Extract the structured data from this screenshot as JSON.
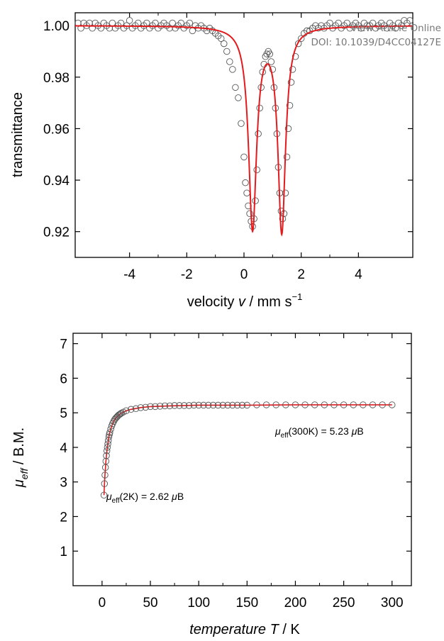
{
  "watermark": {
    "line1": "View Article Online",
    "line2": "DOI: 10.1039/D4CC04127E"
  },
  "chart_data": [
    {
      "type": "scatter",
      "xlabel_text": "velocity ",
      "xlabel_var": "v",
      "xlabel_unit": " / mm s",
      "xlabel_sup": "−1",
      "ylabel": "transmittance",
      "xlim": [
        -5.9,
        5.9
      ],
      "ylim": [
        0.91,
        1.005
      ],
      "xticks": [
        "-4",
        "-2",
        "0",
        "2",
        "4"
      ],
      "xtick_values": [
        -4,
        -2,
        0,
        2,
        4
      ],
      "yticks": [
        "0.92",
        "0.94",
        "0.96",
        "0.98",
        "1.00"
      ],
      "ytick_values": [
        0.92,
        0.94,
        0.96,
        0.98,
        1.0
      ],
      "fit": {
        "baseline": 1.0,
        "lines": [
          {
            "center": 0.3,
            "depth": 0.078,
            "hwhm": 0.17
          },
          {
            "center": 1.32,
            "depth": 0.079,
            "hwhm": 0.16
          }
        ],
        "color": "#e41a1c"
      },
      "series": [
        {
          "marker": "open-circle",
          "x": [
            -5.8,
            -5.7,
            -5.6,
            -5.5,
            -5.4,
            -5.3,
            -5.2,
            -5.1,
            -5.0,
            -4.9,
            -4.8,
            -4.7,
            -4.6,
            -4.5,
            -4.4,
            -4.3,
            -4.2,
            -4.1,
            -4.0,
            -3.9,
            -3.8,
            -3.7,
            -3.6,
            -3.5,
            -3.4,
            -3.3,
            -3.2,
            -3.1,
            -3.0,
            -2.9,
            -2.8,
            -2.7,
            -2.6,
            -2.5,
            -2.4,
            -2.3,
            -2.2,
            -2.1,
            -2.0,
            -1.9,
            -1.8,
            -1.7,
            -1.6,
            -1.5,
            -1.4,
            -1.3,
            -1.2,
            -1.1,
            -1.0,
            -0.9,
            -0.8,
            -0.7,
            -0.6,
            -0.5,
            -0.4,
            -0.3,
            -0.2,
            -0.1,
            0.0,
            0.05,
            0.1,
            0.15,
            0.2,
            0.25,
            0.3,
            0.35,
            0.4,
            0.45,
            0.5,
            0.55,
            0.6,
            0.65,
            0.7,
            0.75,
            0.8,
            0.85,
            0.9,
            0.95,
            1.0,
            1.05,
            1.1,
            1.15,
            1.2,
            1.25,
            1.3,
            1.35,
            1.4,
            1.45,
            1.5,
            1.55,
            1.6,
            1.65,
            1.7,
            1.8,
            1.9,
            2.0,
            2.1,
            2.2,
            2.3,
            2.4,
            2.5,
            2.6,
            2.7,
            2.8,
            2.9,
            3.0,
            3.1,
            3.2,
            3.3,
            3.4,
            3.5,
            3.6,
            3.7,
            3.8,
            3.9,
            4.0,
            4.1,
            4.2,
            4.3,
            4.4,
            4.5,
            4.6,
            4.7,
            4.8,
            4.9,
            5.0,
            5.1,
            5.2,
            5.3,
            5.4,
            5.5,
            5.6,
            5.7,
            5.8
          ],
          "y": [
            1.001,
            0.999,
            1.001,
            1.0,
            1.001,
            0.999,
            1.001,
            1.0,
            0.999,
            1.001,
            1.0,
            0.999,
            1.001,
            0.999,
            1.0,
            1.001,
            0.999,
            1.0,
            1.002,
            0.999,
            1.0,
            1.001,
            0.999,
            1.0,
            1.001,
            0.999,
            1.0,
            1.001,
            0.999,
            1.0,
            1.001,
            1.0,
            0.999,
            1.001,
            0.999,
            1.0,
            1.001,
            0.999,
            1.0,
            1.001,
            0.998,
            1.0,
            0.999,
            1.0,
            0.999,
            0.998,
            0.999,
            0.998,
            0.997,
            0.996,
            0.995,
            0.993,
            0.99,
            0.986,
            0.983,
            0.976,
            0.972,
            0.962,
            0.949,
            0.939,
            0.935,
            0.93,
            0.927,
            0.924,
            0.922,
            0.925,
            0.932,
            0.944,
            0.958,
            0.968,
            0.976,
            0.982,
            0.985,
            0.988,
            0.989,
            0.99,
            0.989,
            0.986,
            0.983,
            0.976,
            0.968,
            0.958,
            0.945,
            0.935,
            0.928,
            0.925,
            0.927,
            0.935,
            0.949,
            0.96,
            0.969,
            0.978,
            0.983,
            0.988,
            0.993,
            0.995,
            0.997,
            0.998,
            0.998,
            0.999,
            1.0,
            0.999,
            1.0,
            0.999,
            1.0,
            1.001,
            0.999,
            1.0,
            1.001,
            0.999,
            1.0,
            1.001,
            0.999,
            1.0,
            1.001,
            1.0,
            0.999,
            1.001,
            1.0,
            1.0,
            1.001,
            0.999,
            1.0,
            1.001,
            1.0,
            0.999,
            1.001,
            1.0,
            0.999,
            1.001,
            1.0,
            1.002,
            1.001,
            1.002
          ]
        }
      ]
    },
    {
      "type": "scatter",
      "xlabel_var": "temperature T",
      "xlabel_unit": " / K",
      "ylabel_var": "μ",
      "ylabel_sub": "eff",
      "ylabel_unit": " / B.M.",
      "xlim": [
        -30,
        320
      ],
      "ylim": [
        0,
        7.3
      ],
      "xticks": [
        "0",
        "50",
        "100",
        "150",
        "200",
        "250",
        "300"
      ],
      "xtick_values": [
        0,
        50,
        100,
        150,
        200,
        250,
        300
      ],
      "yticks": [
        "1",
        "2",
        "3",
        "4",
        "5",
        "6",
        "7"
      ],
      "ytick_values": [
        1,
        2,
        3,
        4,
        5,
        6,
        7
      ],
      "annotations": [
        {
          "mu": "μ",
          "sub": "eff",
          "rest": "(300K) = 5.23 ",
          "unit_mu": "μ",
          "unit": "B",
          "anchor_x": 180,
          "anchor_y": 4.55
        },
        {
          "mu": "μ",
          "sub": "eff",
          "rest": "(2K) = 2.62 ",
          "unit_mu": "μ",
          "unit": "B",
          "anchor_x": 6,
          "anchor_y": 2.55
        }
      ],
      "fit": {
        "color": "#e41a1c",
        "x": [
          2,
          2.5,
          3,
          4,
          5,
          6,
          7,
          8,
          10,
          12,
          14,
          16,
          18,
          20,
          25,
          30,
          40,
          50,
          70,
          100,
          150,
          200,
          250,
          300
        ],
        "y": [
          2.62,
          2.95,
          3.2,
          3.6,
          3.9,
          4.1,
          4.3,
          4.43,
          4.62,
          4.75,
          4.84,
          4.9,
          4.95,
          4.99,
          5.06,
          5.1,
          5.15,
          5.18,
          5.2,
          5.22,
          5.22,
          5.23,
          5.23,
          5.23
        ]
      },
      "series": [
        {
          "marker": "open-circle",
          "x": [
            2,
            2.5,
            3,
            3.5,
            4,
            4.5,
            5,
            5.5,
            6,
            6.5,
            7,
            7.5,
            8,
            9,
            10,
            11,
            12,
            13,
            14,
            15,
            16,
            17,
            18,
            19,
            20,
            22,
            25,
            30,
            35,
            40,
            45,
            50,
            55,
            60,
            65,
            70,
            75,
            80,
            85,
            90,
            95,
            100,
            105,
            110,
            115,
            120,
            125,
            130,
            135,
            140,
            145,
            150,
            160,
            170,
            180,
            190,
            200,
            210,
            220,
            230,
            240,
            250,
            260,
            270,
            280,
            290,
            300
          ],
          "y": [
            2.62,
            2.95,
            3.2,
            3.42,
            3.6,
            3.76,
            3.9,
            4.0,
            4.1,
            4.2,
            4.3,
            4.37,
            4.43,
            4.53,
            4.62,
            4.69,
            4.75,
            4.8,
            4.84,
            4.87,
            4.9,
            4.93,
            4.95,
            4.97,
            4.99,
            5.02,
            5.06,
            5.1,
            5.12,
            5.15,
            5.16,
            5.18,
            5.18,
            5.19,
            5.2,
            5.2,
            5.21,
            5.21,
            5.21,
            5.21,
            5.22,
            5.22,
            5.22,
            5.22,
            5.22,
            5.22,
            5.22,
            5.22,
            5.22,
            5.22,
            5.22,
            5.22,
            5.23,
            5.23,
            5.23,
            5.23,
            5.23,
            5.23,
            5.23,
            5.23,
            5.23,
            5.23,
            5.23,
            5.23,
            5.23,
            5.23,
            5.23
          ]
        }
      ]
    }
  ]
}
